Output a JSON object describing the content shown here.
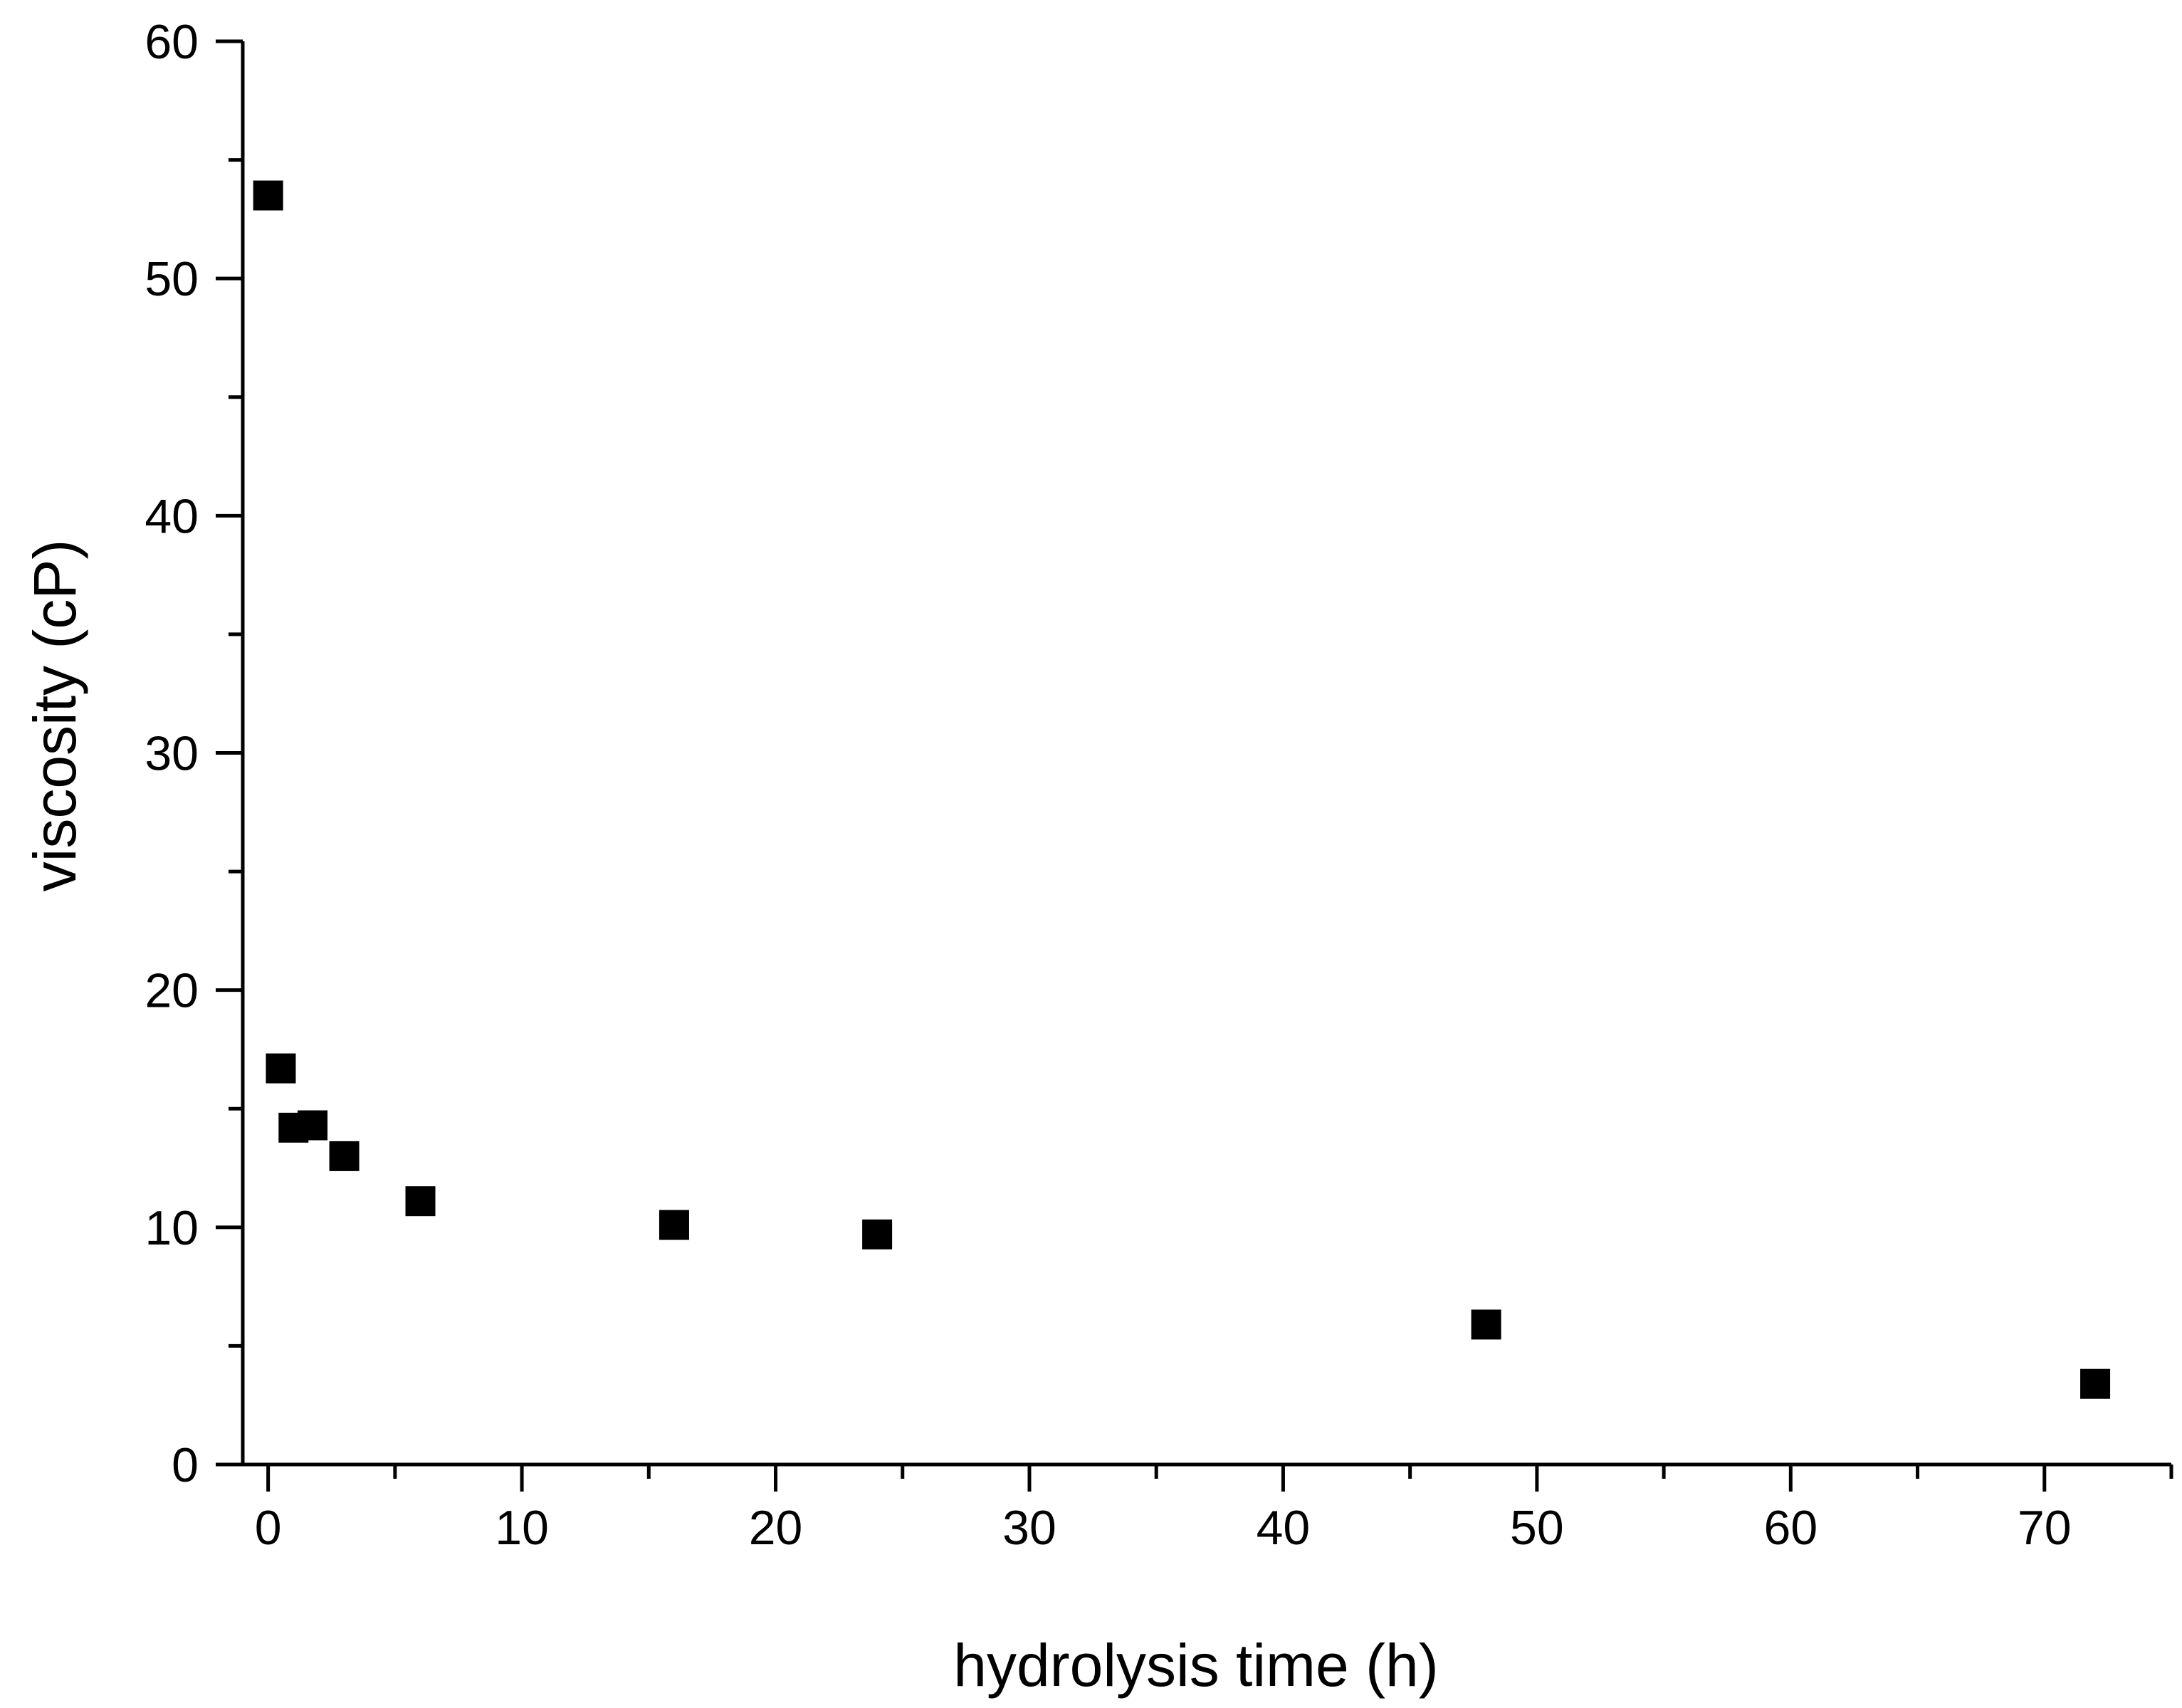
{
  "chart_data": {
    "type": "scatter",
    "title": "",
    "xlabel": "hydrolysis time (h)",
    "ylabel": "viscosity (cP)",
    "xlim": [
      -1,
      75
    ],
    "ylim": [
      0,
      60
    ],
    "x_ticks": [
      0,
      10,
      20,
      30,
      40,
      50,
      60,
      70
    ],
    "y_ticks": [
      0,
      10,
      20,
      30,
      40,
      50,
      60
    ],
    "grid": false,
    "legend": "none",
    "marker": "square",
    "marker_color": "#000000",
    "series": [
      {
        "x": [
          0,
          0.5,
          1,
          1.75,
          3,
          6,
          16,
          24,
          48,
          72
        ],
        "y": [
          53.5,
          16.7,
          14.2,
          14.3,
          13.0,
          11.1,
          10.1,
          9.7,
          5.9,
          3.4
        ]
      }
    ]
  }
}
